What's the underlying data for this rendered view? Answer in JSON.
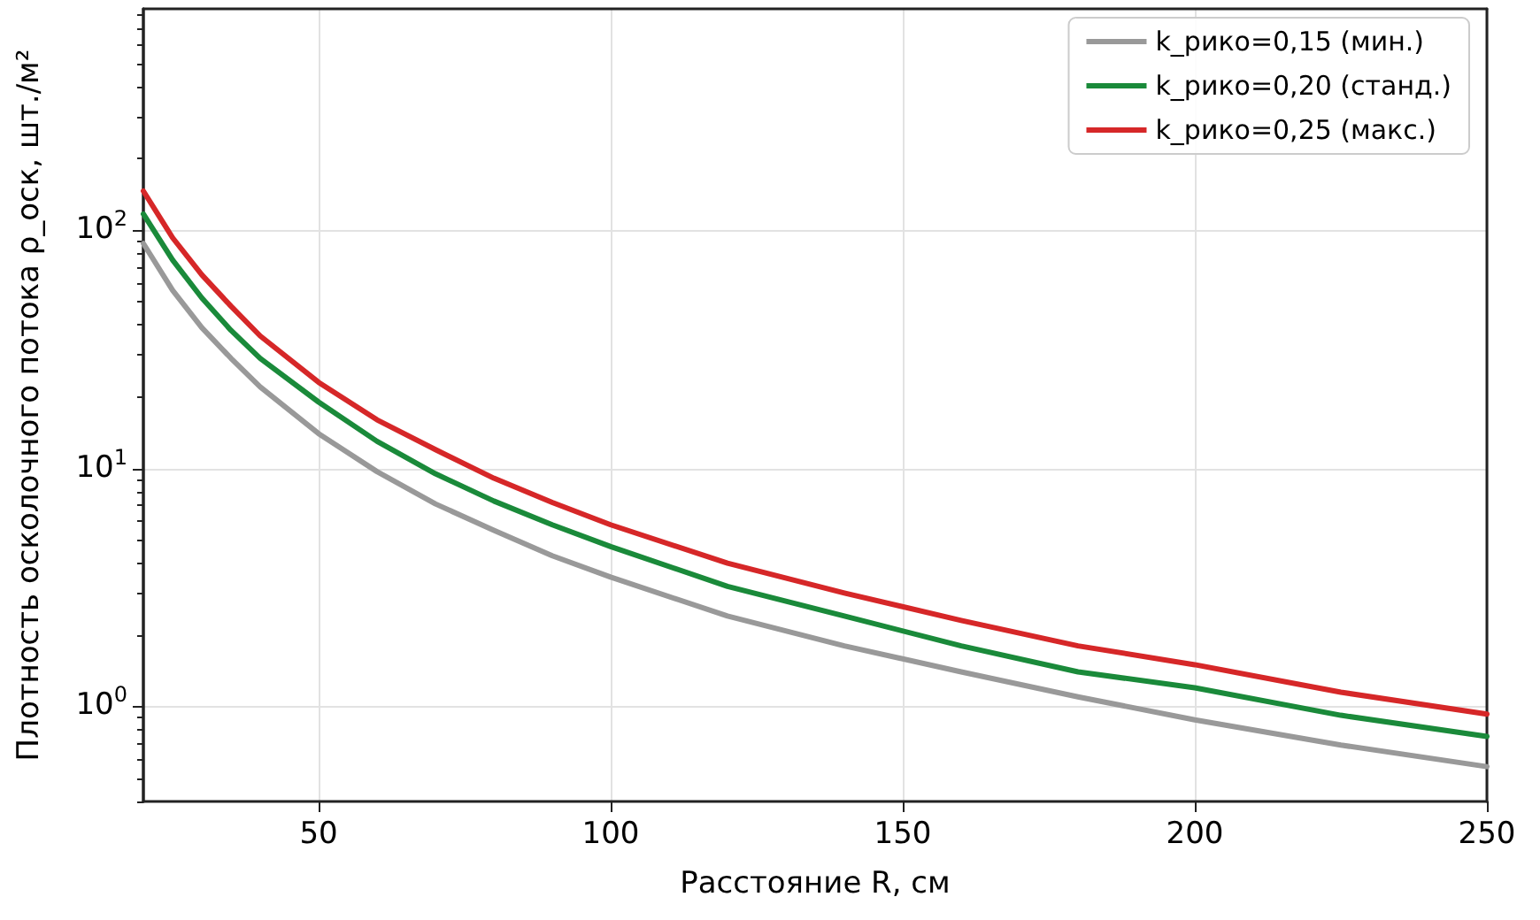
{
  "chart_data": {
    "type": "line",
    "xlabel": "Расстояние R, см",
    "ylabel": "Плотность осколочного потока ρ_оск, шт./м²",
    "x": [
      20,
      25,
      30,
      35,
      40,
      50,
      60,
      70,
      80,
      90,
      100,
      120,
      140,
      160,
      180,
      200,
      225,
      250
    ],
    "series": [
      {
        "name": "k_рико=0,15 (мин.)",
        "color": "#999999",
        "values": [
          88,
          56,
          39,
          29,
          22,
          14,
          9.7,
          7.1,
          5.5,
          4.3,
          3.5,
          2.4,
          1.8,
          1.4,
          1.1,
          0.88,
          0.69,
          0.56
        ]
      },
      {
        "name": "k_рико=0,20 (станд.)",
        "color": "#1a8a3a",
        "values": [
          117,
          75,
          52,
          38,
          29,
          19,
          13,
          9.5,
          7.3,
          5.8,
          4.7,
          3.2,
          2.4,
          1.8,
          1.4,
          1.2,
          0.92,
          0.75
        ]
      },
      {
        "name": "k_рико=0,25 (макс.)",
        "color": "#d62728",
        "values": [
          146,
          93,
          65,
          48,
          36,
          23,
          16,
          12,
          9.1,
          7.2,
          5.8,
          4.0,
          3.0,
          2.3,
          1.8,
          1.5,
          1.15,
          0.93
        ]
      }
    ],
    "xlim": [
      20,
      250
    ],
    "xticks": [
      50,
      100,
      150,
      200,
      250
    ],
    "ylim": [
      0.4,
      850
    ],
    "yticks": [
      {
        "value": 0.4,
        "label": null
      },
      {
        "value": 0.5,
        "label": null
      },
      {
        "value": 0.6,
        "label": null
      },
      {
        "value": 0.7,
        "label": null
      },
      {
        "value": 0.8,
        "label": null
      },
      {
        "value": 0.9,
        "label": null
      },
      {
        "value": 1,
        "label": "10$^{0}$"
      },
      {
        "value": 2,
        "label": null
      },
      {
        "value": 3,
        "label": null
      },
      {
        "value": 4,
        "label": null
      },
      {
        "value": 5,
        "label": null
      },
      {
        "value": 6,
        "label": null
      },
      {
        "value": 7,
        "label": null
      },
      {
        "value": 8,
        "label": null
      },
      {
        "value": 9,
        "label": null
      },
      {
        "value": 10,
        "label": "10$^{1}$"
      },
      {
        "value": 20,
        "label": null
      },
      {
        "value": 30,
        "label": null
      },
      {
        "value": 40,
        "label": null
      },
      {
        "value": 50,
        "label": null
      },
      {
        "value": 60,
        "label": null
      },
      {
        "value": 70,
        "label": null
      },
      {
        "value": 80,
        "label": null
      },
      {
        "value": 90,
        "label": null
      },
      {
        "value": 100,
        "label": "10$^{2}$"
      },
      {
        "value": 200,
        "label": null
      },
      {
        "value": 300,
        "label": null
      },
      {
        "value": 400,
        "label": null
      },
      {
        "value": 500,
        "label": null
      },
      {
        "value": 600,
        "label": null
      },
      {
        "value": 700,
        "label": null
      },
      {
        "value": 800,
        "label": null
      }
    ],
    "log": "y",
    "grid": true,
    "legend": "top right",
    "marker": "none",
    "line_style": "solid"
  }
}
